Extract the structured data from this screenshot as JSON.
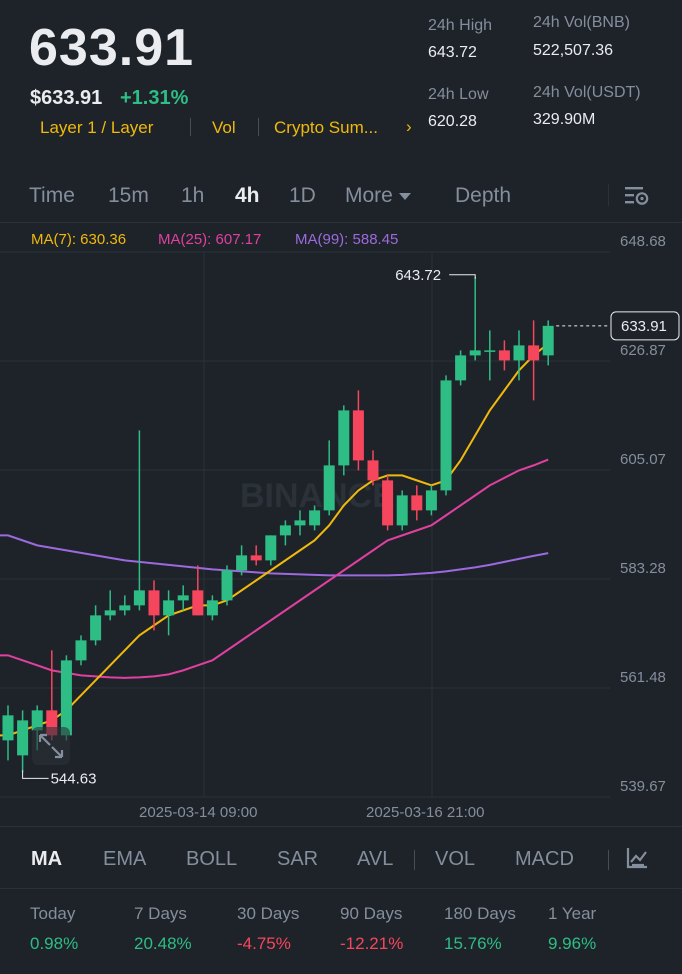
{
  "header": {
    "last_price": "633.91",
    "usd_price": "$633.91",
    "change_pct": "+1.31%",
    "tags": [
      "Layer 1 / Layer",
      "Vol",
      "Crypto Sum..."
    ],
    "tags_more": "›",
    "stats": {
      "high_label": "24h High",
      "high_value": "643.72",
      "low_label": "24h Low",
      "low_value": "620.28",
      "vol_bnb_label": "24h Vol(BNB)",
      "vol_bnb_value": "522,507.36",
      "vol_usdt_label": "24h Vol(USDT)",
      "vol_usdt_value": "329.90M"
    }
  },
  "timeframes": {
    "items": [
      "Time",
      "15m",
      "1h",
      "4h",
      "1D",
      "More",
      "Depth"
    ],
    "active": "4h",
    "settings_icon": "chart-settings-icon"
  },
  "chart": {
    "ma7_label": "MA(7): 630.36",
    "ma25_label": "MA(25): 607.17",
    "ma99_label": "MA(99): 588.45",
    "price_axis": [
      "648.68",
      "626.87",
      "605.07",
      "583.28",
      "561.48",
      "539.67"
    ],
    "time_axis": [
      "2025-03-14 09:00",
      "2025-03-16 21:00"
    ],
    "current_price_tag": "633.91",
    "high_marker": "643.72",
    "low_marker": "544.63",
    "watermark": "BINANCE",
    "colors": {
      "up": "#2ebd85",
      "down": "#f6465d",
      "ma7": "#f0b90b",
      "ma25": "#e040a0",
      "ma99": "#9c6ade"
    }
  },
  "chart_data": {
    "type": "candlestick",
    "interval": "4h",
    "ylim": [
      539.67,
      648.68
    ],
    "candles": [
      {
        "o": 551,
        "h": 558,
        "l": 547,
        "c": 556
      },
      {
        "o": 548,
        "h": 557,
        "l": 544.6,
        "c": 555
      },
      {
        "o": 553,
        "h": 558,
        "l": 549,
        "c": 557
      },
      {
        "o": 557,
        "h": 569,
        "l": 551,
        "c": 552
      },
      {
        "o": 552,
        "h": 568,
        "l": 551,
        "c": 567
      },
      {
        "o": 567,
        "h": 572,
        "l": 566,
        "c": 571
      },
      {
        "o": 571,
        "h": 578,
        "l": 570,
        "c": 576
      },
      {
        "o": 576,
        "h": 581,
        "l": 575,
        "c": 577
      },
      {
        "o": 577,
        "h": 580,
        "l": 576,
        "c": 578
      },
      {
        "o": 578,
        "h": 613,
        "l": 577,
        "c": 581
      },
      {
        "o": 581,
        "h": 583,
        "l": 573,
        "c": 576
      },
      {
        "o": 576,
        "h": 581,
        "l": 572,
        "c": 579
      },
      {
        "o": 579,
        "h": 582,
        "l": 577,
        "c": 580
      },
      {
        "o": 581,
        "h": 586,
        "l": 576,
        "c": 576
      },
      {
        "o": 576,
        "h": 580,
        "l": 575,
        "c": 579
      },
      {
        "o": 579,
        "h": 586,
        "l": 578,
        "c": 585
      },
      {
        "o": 585,
        "h": 590,
        "l": 584,
        "c": 588
      },
      {
        "o": 588,
        "h": 590,
        "l": 586,
        "c": 587
      },
      {
        "o": 587,
        "h": 592,
        "l": 586,
        "c": 592
      },
      {
        "o": 592,
        "h": 595,
        "l": 590,
        "c": 594
      },
      {
        "o": 594,
        "h": 597,
        "l": 592,
        "c": 595
      },
      {
        "o": 594,
        "h": 598,
        "l": 593,
        "c": 597
      },
      {
        "o": 597,
        "h": 611,
        "l": 596,
        "c": 606
      },
      {
        "o": 606,
        "h": 618,
        "l": 604,
        "c": 617
      },
      {
        "o": 617,
        "h": 621,
        "l": 605,
        "c": 607
      },
      {
        "o": 607,
        "h": 609,
        "l": 602,
        "c": 603
      },
      {
        "o": 603,
        "h": 604,
        "l": 593,
        "c": 594
      },
      {
        "o": 594,
        "h": 601,
        "l": 593,
        "c": 600
      },
      {
        "o": 600,
        "h": 602,
        "l": 595,
        "c": 597
      },
      {
        "o": 597,
        "h": 602,
        "l": 596,
        "c": 601
      },
      {
        "o": 601,
        "h": 624,
        "l": 600,
        "c": 623
      },
      {
        "o": 623,
        "h": 629,
        "l": 622,
        "c": 628
      },
      {
        "o": 628,
        "h": 643.72,
        "l": 627,
        "c": 629
      },
      {
        "o": 629,
        "h": 633,
        "l": 623,
        "c": 629
      },
      {
        "o": 629,
        "h": 631,
        "l": 625,
        "c": 627
      },
      {
        "o": 627,
        "h": 633,
        "l": 623,
        "c": 630
      },
      {
        "o": 630,
        "h": 635,
        "l": 619,
        "c": 627
      },
      {
        "o": 628,
        "h": 635,
        "l": 626,
        "c": 633.91
      }
    ],
    "ma7": [
      552,
      553,
      554,
      555,
      557,
      560,
      563,
      566,
      569,
      572,
      574,
      576,
      577,
      578,
      578,
      579,
      581,
      583,
      585,
      587,
      589,
      591,
      594,
      598,
      601,
      603,
      604,
      604,
      603,
      602,
      603,
      607,
      612,
      617,
      621,
      625,
      628,
      630.36
    ],
    "ma25": [
      568,
      567,
      566,
      565,
      564.5,
      564,
      563.8,
      563.6,
      563.5,
      563.6,
      563.8,
      564.2,
      565,
      566,
      567,
      569,
      571,
      573,
      575,
      577,
      579,
      581,
      583,
      585,
      587,
      589,
      591,
      592,
      593,
      594,
      596,
      598,
      600,
      602,
      603.5,
      605,
      606,
      607.17
    ],
    "ma99": [
      592,
      591,
      590,
      589.5,
      589,
      588.5,
      588,
      587.5,
      587,
      586.7,
      586.4,
      586.1,
      585.8,
      585.5,
      585.2,
      585,
      584.8,
      584.6,
      584.4,
      584.3,
      584.2,
      584.1,
      584,
      584,
      584,
      584,
      584,
      584.1,
      584.3,
      584.5,
      584.8,
      585.2,
      585.6,
      586.1,
      586.7,
      587.3,
      587.9,
      588.45
    ]
  },
  "indicators": {
    "items": [
      "MA",
      "EMA",
      "BOLL",
      "SAR",
      "AVL",
      "VOL",
      "MACD"
    ],
    "active": "MA"
  },
  "performance": [
    {
      "label": "Today",
      "value": "0.98%",
      "color": "#2ebd85"
    },
    {
      "label": "7 Days",
      "value": "20.48%",
      "color": "#2ebd85"
    },
    {
      "label": "30 Days",
      "value": "-4.75%",
      "color": "#f6465d"
    },
    {
      "label": "90 Days",
      "value": "-12.21%",
      "color": "#f6465d"
    },
    {
      "label": "180 Days",
      "value": "15.76%",
      "color": "#2ebd85"
    },
    {
      "label": "1 Year",
      "value": "9.96%",
      "color": "#2ebd85"
    }
  ]
}
